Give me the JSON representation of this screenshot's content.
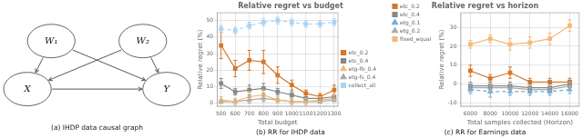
{
  "chart_data": [
    {
      "type": "graph",
      "subtitle": "(a) IHDP data causal graph",
      "nodes": [
        "W₁",
        "W₂",
        "X",
        "Y"
      ],
      "edges": [
        [
          "W₁",
          "X"
        ],
        [
          "W₁",
          "Y"
        ],
        [
          "W₂",
          "X"
        ],
        [
          "W₂",
          "Y"
        ],
        [
          "X",
          "Y"
        ]
      ]
    },
    {
      "type": "line",
      "title": "Relative regret vs budget",
      "subtitle": "(b) RR for IHDP data",
      "xlabel": "Total budget",
      "ylabel": "Relative regret (%)",
      "x": [
        500,
        600,
        700,
        800,
        900,
        1000,
        1100,
        1200,
        1300
      ],
      "xlim": [
        470,
        1330
      ],
      "xticks": [
        500,
        600,
        700,
        800,
        900,
        1000,
        1100,
        1200,
        1300
      ],
      "ylim": [
        -2,
        55
      ],
      "yticks": [
        0,
        10,
        20,
        30,
        40,
        50
      ],
      "grid": true,
      "legend": "center right",
      "series": [
        {
          "name": "etc_0.2",
          "color": "#d4782a",
          "marker": "square",
          "line_style": "solid",
          "values": [
            35,
            21,
            26,
            25,
            17,
            11,
            6,
            4,
            8
          ],
          "errors": [
            8,
            5,
            6,
            7,
            5,
            3,
            2,
            2,
            3
          ]
        },
        {
          "name": "etc_0.4",
          "color": "#888888",
          "marker": "square",
          "line_style": "solid",
          "values": [
            12,
            7,
            8,
            9,
            7,
            5,
            3,
            3,
            4
          ],
          "errors": [
            3,
            2,
            3,
            3,
            2,
            2,
            1,
            1,
            1
          ]
        },
        {
          "name": "etg-fb_0.4",
          "color": "#f5b97a",
          "marker": "triangle",
          "line_style": "solid",
          "values": [
            2,
            1,
            4,
            5,
            2,
            1,
            1,
            2,
            3
          ],
          "errors": [
            2,
            2,
            3,
            3,
            2,
            2,
            2,
            2,
            2
          ]
        },
        {
          "name": "etg-fs_0.4",
          "color": "#aaaaaa",
          "marker": "triangle",
          "line_style": "solid",
          "values": [
            1,
            1,
            2,
            3,
            2,
            1,
            1,
            1,
            2
          ],
          "errors": [
            1,
            1,
            2,
            2,
            1,
            1,
            1,
            1,
            1
          ]
        },
        {
          "name": "collect_all",
          "color": "#aad4f5",
          "marker": "square",
          "line_style": "dashed",
          "values": [
            45,
            44,
            47,
            49,
            50,
            49,
            48,
            48,
            49
          ],
          "errors": [
            2,
            2,
            2,
            2,
            2,
            2,
            2,
            2,
            2
          ]
        }
      ]
    },
    {
      "type": "line",
      "title": "Relative regret vs horizon",
      "subtitle": "(c) RR for Earnings data",
      "xlabel": "Total samples collected (Horizon)",
      "ylabel": "Relative regret (%)",
      "x": [
        6000,
        8000,
        10000,
        12000,
        14000,
        16000
      ],
      "xlim": [
        5000,
        17000
      ],
      "xticks": [
        6000,
        8000,
        10000,
        12000,
        14000,
        16000
      ],
      "ylim": [
        -12,
        38
      ],
      "yticks": [
        -10,
        0,
        10,
        20,
        30
      ],
      "grid": true,
      "legend": "upper left",
      "series": [
        {
          "name": "etc_0.2",
          "color": "#d4782a",
          "marker": "square",
          "line_style": "solid",
          "values": [
            7,
            3,
            6,
            1,
            1,
            1
          ],
          "errors": [
            3,
            2,
            3,
            2,
            2,
            2
          ]
        },
        {
          "name": "etc_0.4",
          "color": "#888888",
          "marker": "square",
          "line_style": "solid",
          "values": [
            -1,
            -1,
            -1,
            -2,
            -2,
            0
          ],
          "errors": [
            2,
            2,
            2,
            2,
            2,
            2
          ]
        },
        {
          "name": "etg_0.1",
          "color": "#6ab0e0",
          "marker": "triangle",
          "line_style": "dashed",
          "values": [
            -3,
            -4,
            -4,
            -4,
            -4,
            -3
          ],
          "errors": [
            2,
            3,
            2,
            2,
            2,
            2
          ]
        },
        {
          "name": "etg_0.2",
          "color": "#aaaaaa",
          "marker": "triangle",
          "line_style": "solid",
          "values": [
            -2,
            -2,
            -2,
            -3,
            -3,
            -1
          ],
          "errors": [
            2,
            2,
            2,
            2,
            2,
            2
          ]
        },
        {
          "name": "fixed_equal",
          "color": "#f5b97a",
          "marker": "square",
          "line_style": "solid",
          "values": [
            21,
            24,
            21,
            22,
            24,
            31
          ],
          "errors": [
            2,
            2,
            3,
            3,
            3,
            3
          ]
        }
      ]
    }
  ]
}
